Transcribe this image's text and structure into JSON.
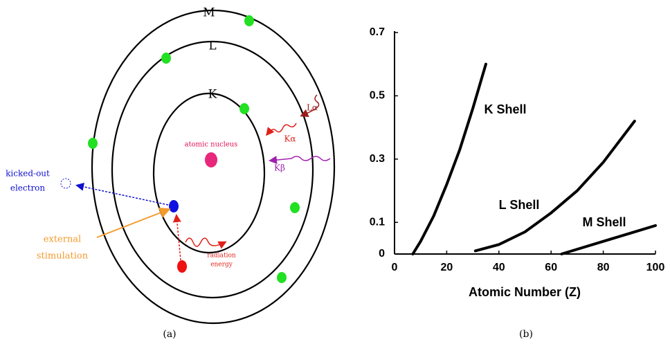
{
  "diagram": {
    "shells": [
      "M",
      "L",
      "K"
    ],
    "nucleus": "atomic nucleus",
    "lines": {
      "l_alpha": "Lα",
      "k_alpha": "Kα",
      "k_beta": "Kβ"
    },
    "kicked_out": [
      "kicked-out",
      "electron"
    ],
    "external": [
      "external",
      "stimulation"
    ],
    "radiation": [
      "radiation",
      "energy"
    ],
    "caption": "(a)"
  },
  "chart_data": {
    "type": "line",
    "caption": "(b)",
    "x_label": "Atomic Number (Z)",
    "xlim": [
      0,
      100
    ],
    "xticks": [
      0,
      20,
      40,
      60,
      80,
      100
    ],
    "ylim": [
      0,
      0.7
    ],
    "yticks": [
      0,
      0.1,
      0.3,
      0.5,
      0.7
    ],
    "series": [
      {
        "name": "K Shell",
        "color": "#000000",
        "x": [
          7,
          10,
          15,
          20,
          25,
          30,
          35
        ],
        "values": [
          0,
          0.04,
          0.12,
          0.22,
          0.33,
          0.46,
          0.6
        ]
      },
      {
        "name": "L Shell",
        "color": "#000000",
        "x": [
          31,
          40,
          50,
          60,
          70,
          80,
          92
        ],
        "values": [
          0.01,
          0.03,
          0.07,
          0.13,
          0.2,
          0.29,
          0.42
        ]
      },
      {
        "name": "M Shell",
        "color": "#000000",
        "x": [
          64,
          70,
          80,
          90,
          100
        ],
        "values": [
          0,
          0.015,
          0.04,
          0.065,
          0.09
        ]
      }
    ]
  }
}
